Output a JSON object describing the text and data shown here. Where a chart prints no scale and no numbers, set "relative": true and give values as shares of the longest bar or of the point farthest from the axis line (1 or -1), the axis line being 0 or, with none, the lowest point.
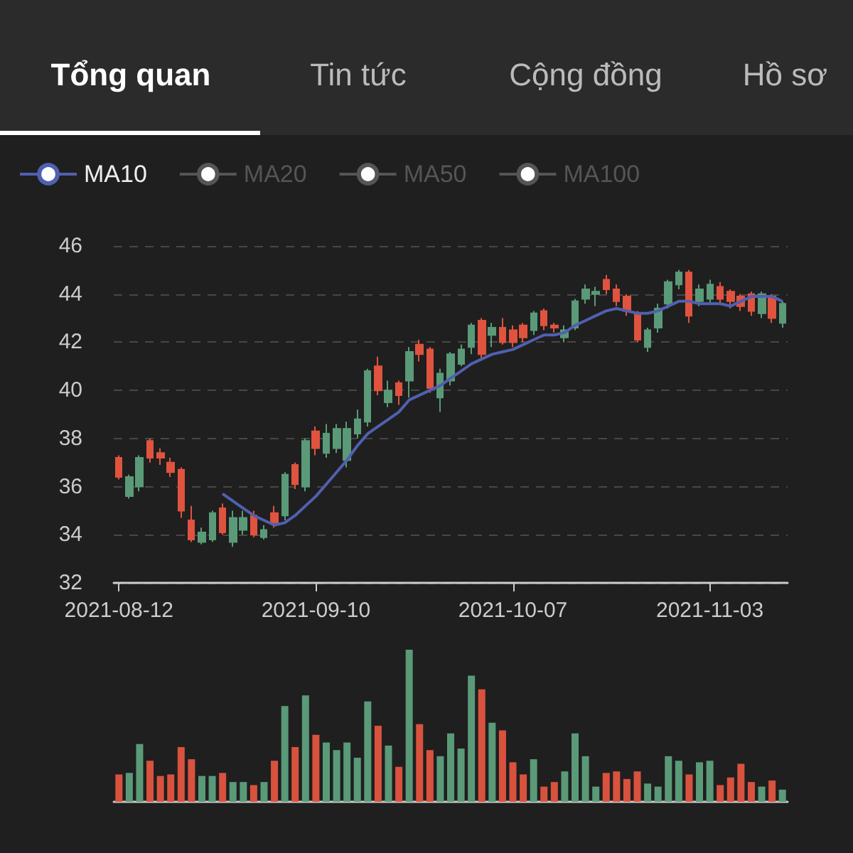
{
  "chart_data": [
    {
      "type": "candlestick",
      "annotations": [
        "Tổng quan",
        "Tin tức",
        "Cộng đồng",
        "Hồ sơ"
      ],
      "categories": [
        "2021-08-12",
        null,
        null,
        null,
        null,
        null,
        null,
        null,
        null,
        null,
        null,
        null,
        null,
        null,
        null,
        null,
        null,
        null,
        null,
        "2021-09-10",
        null,
        null,
        null,
        null,
        null,
        null,
        null,
        null,
        null,
        null,
        null,
        null,
        null,
        null,
        null,
        null,
        null,
        null,
        "2021-10-07",
        null,
        null,
        null,
        null,
        null,
        null,
        null,
        null,
        null,
        null,
        null,
        null,
        null,
        null,
        null,
        null,
        null,
        null,
        "2021-11-03",
        null,
        null,
        null,
        null,
        null,
        null,
        null
      ],
      "ohlc": [
        [
          37.2,
          37.3,
          36.3,
          36.4
        ],
        [
          35.6,
          36.5,
          35.5,
          36.4
        ],
        [
          36.0,
          37.3,
          35.8,
          37.2
        ],
        [
          37.9,
          38.0,
          37.0,
          37.2
        ],
        [
          37.4,
          37.6,
          36.9,
          37.2
        ],
        [
          37.0,
          37.2,
          36.4,
          36.6
        ],
        [
          36.7,
          36.8,
          34.7,
          35.0
        ],
        [
          34.6,
          35.2,
          33.7,
          33.8
        ],
        [
          33.7,
          34.3,
          33.6,
          34.1
        ],
        [
          33.8,
          35.0,
          33.7,
          34.9
        ],
        [
          35.1,
          35.3,
          34.0,
          34.1
        ],
        [
          33.7,
          35.0,
          33.5,
          34.7
        ],
        [
          34.2,
          35.0,
          34.0,
          34.7
        ],
        [
          34.8,
          35.0,
          33.9,
          34.0
        ],
        [
          33.9,
          34.4,
          33.8,
          34.2
        ],
        [
          34.9,
          35.2,
          34.3,
          34.5
        ],
        [
          34.8,
          36.6,
          34.6,
          36.5
        ],
        [
          36.9,
          37.0,
          35.9,
          36.1
        ],
        [
          36.0,
          38.0,
          35.8,
          37.9
        ],
        [
          38.3,
          38.5,
          37.3,
          37.6
        ],
        [
          37.4,
          38.6,
          37.2,
          38.2
        ],
        [
          37.6,
          38.6,
          37.4,
          38.4
        ],
        [
          37.1,
          38.7,
          36.8,
          38.4
        ],
        [
          38.2,
          39.2,
          38.0,
          38.8
        ],
        [
          38.7,
          40.9,
          38.5,
          40.8
        ],
        [
          41.0,
          41.4,
          39.8,
          40.0
        ],
        [
          39.5,
          40.4,
          39.3,
          40.0
        ],
        [
          40.3,
          40.4,
          39.4,
          39.8
        ],
        [
          40.4,
          41.8,
          39.7,
          41.6
        ],
        [
          41.9,
          42.1,
          41.2,
          41.5
        ],
        [
          41.7,
          41.8,
          39.9,
          40.1
        ],
        [
          39.7,
          40.9,
          39.1,
          40.7
        ],
        [
          40.4,
          41.6,
          40.2,
          41.5
        ],
        [
          41.1,
          41.9,
          41.0,
          41.7
        ],
        [
          41.8,
          42.8,
          41.5,
          42.7
        ],
        [
          42.9,
          43.0,
          41.3,
          41.5
        ],
        [
          42.3,
          42.8,
          41.8,
          42.6
        ],
        [
          42.6,
          43.0,
          41.9,
          42.0
        ],
        [
          42.5,
          42.7,
          41.8,
          42.0
        ],
        [
          42.7,
          42.8,
          42.0,
          42.2
        ],
        [
          42.5,
          43.3,
          42.3,
          43.2
        ],
        [
          43.3,
          43.4,
          42.5,
          42.7
        ],
        [
          42.7,
          42.8,
          42.4,
          42.6
        ],
        [
          42.2,
          42.7,
          42.0,
          42.5
        ],
        [
          42.6,
          43.8,
          42.5,
          43.7
        ],
        [
          43.8,
          44.4,
          43.6,
          44.2
        ],
        [
          44.0,
          44.3,
          43.5,
          44.1
        ],
        [
          44.6,
          44.8,
          44.0,
          44.2
        ],
        [
          44.2,
          44.4,
          43.5,
          43.7
        ],
        [
          43.9,
          44.0,
          43.1,
          43.3
        ],
        [
          43.2,
          43.3,
          42.0,
          42.1
        ],
        [
          41.8,
          42.6,
          41.6,
          42.5
        ],
        [
          42.6,
          43.6,
          42.4,
          43.4
        ],
        [
          43.6,
          44.6,
          43.4,
          44.5
        ],
        [
          44.4,
          45.0,
          44.2,
          44.9
        ],
        [
          44.9,
          45.0,
          42.8,
          43.1
        ],
        [
          43.7,
          44.4,
          43.5,
          44.2
        ],
        [
          43.8,
          44.6,
          43.6,
          44.4
        ],
        [
          44.3,
          44.5,
          43.6,
          43.8
        ],
        [
          44.1,
          44.2,
          43.4,
          43.7
        ],
        [
          43.9,
          44.0,
          43.3,
          43.5
        ],
        [
          44.0,
          44.1,
          43.1,
          43.3
        ],
        [
          43.2,
          44.1,
          43.0,
          44.0
        ],
        [
          43.9,
          44.0,
          42.8,
          43.0
        ],
        [
          42.8,
          43.7,
          42.6,
          43.6
        ]
      ],
      "series": [
        {
          "name": "MA10",
          "type": "line",
          "color": "#5060b0",
          "values": [
            null,
            null,
            null,
            null,
            null,
            null,
            null,
            null,
            null,
            null,
            35.7,
            35.4,
            35.1,
            34.8,
            34.6,
            34.4,
            34.5,
            34.8,
            35.2,
            35.6,
            36.1,
            36.6,
            37.1,
            37.7,
            38.2,
            38.5,
            38.8,
            39.1,
            39.6,
            39.8,
            40.0,
            40.2,
            40.5,
            40.8,
            41.1,
            41.3,
            41.5,
            41.6,
            41.7,
            41.9,
            42.1,
            42.3,
            42.3,
            42.4,
            42.7,
            42.9,
            43.1,
            43.3,
            43.4,
            43.3,
            43.2,
            43.2,
            43.3,
            43.5,
            43.7,
            43.7,
            43.6,
            43.6,
            43.6,
            43.5,
            43.7,
            43.9,
            43.9,
            43.9,
            43.7
          ]
        },
        {
          "name": "MA20",
          "type": "line",
          "color": "#555555",
          "values": [
            null,
            null,
            null,
            null,
            null,
            null,
            null,
            null,
            null,
            null,
            null,
            null,
            null,
            null,
            null,
            null,
            null,
            null,
            null,
            null,
            null,
            null,
            null,
            null,
            null,
            null,
            null,
            null,
            null,
            null,
            null,
            null,
            null,
            null,
            null,
            null,
            null,
            null,
            null,
            null,
            null,
            null,
            null,
            null,
            null,
            null,
            null,
            null,
            null,
            null,
            null,
            null,
            null,
            null,
            null,
            null,
            null,
            null,
            null,
            null,
            null,
            null,
            null,
            null,
            null
          ]
        },
        {
          "name": "MA50",
          "type": "line",
          "color": "#555555",
          "values": [
            null,
            null,
            null,
            null,
            null,
            null,
            null,
            null,
            null,
            null,
            null,
            null,
            null,
            null,
            null,
            null,
            null,
            null,
            null,
            null,
            null,
            null,
            null,
            null,
            null,
            null,
            null,
            null,
            null,
            null,
            null,
            null,
            null,
            null,
            null,
            null,
            null,
            null,
            null,
            null,
            null,
            null,
            null,
            null,
            null,
            null,
            null,
            null,
            null,
            null,
            null,
            null,
            null,
            null,
            null,
            null,
            null,
            null,
            null,
            null,
            null,
            null,
            null,
            null,
            null
          ]
        },
        {
          "name": "MA100",
          "type": "line",
          "color": "#555555",
          "values": [
            null,
            null,
            null,
            null,
            null,
            null,
            null,
            null,
            null,
            null,
            null,
            null,
            null,
            null,
            null,
            null,
            null,
            null,
            null,
            null,
            null,
            null,
            null,
            null,
            null,
            null,
            null,
            null,
            null,
            null,
            null,
            null,
            null,
            null,
            null,
            null,
            null,
            null,
            null,
            null,
            null,
            null,
            null,
            null,
            null,
            null,
            null,
            null,
            null,
            null,
            null,
            null,
            null,
            null,
            null,
            null,
            null,
            null,
            null,
            null,
            null,
            null,
            null,
            null,
            null
          ]
        }
      ],
      "ylim": [
        32,
        46
      ],
      "yticks": [
        32,
        34,
        36,
        38,
        40,
        42,
        44,
        46
      ],
      "grid": "y",
      "legend": "top left"
    },
    {
      "type": "bar",
      "relative": true,
      "tick_labels": false,
      "categories": [
        null,
        null,
        null,
        null,
        null,
        null,
        null,
        null,
        null,
        null,
        null,
        null,
        null,
        null,
        null,
        null,
        null,
        null,
        null,
        null,
        null,
        null,
        null,
        null,
        null,
        null,
        null,
        null,
        null,
        null,
        null,
        null,
        null,
        null,
        null,
        null,
        null,
        null,
        null,
        null,
        null,
        null,
        null,
        null,
        null,
        null,
        null,
        null,
        null,
        null,
        null,
        null,
        null,
        null,
        null,
        null,
        null,
        null,
        null,
        null,
        null,
        null,
        null,
        null,
        null
      ],
      "values": [
        0.18,
        0.19,
        0.38,
        0.27,
        0.17,
        0.18,
        0.36,
        0.28,
        0.17,
        0.17,
        0.19,
        0.13,
        0.13,
        0.11,
        0.13,
        0.27,
        0.63,
        0.36,
        0.7,
        0.44,
        0.39,
        0.34,
        0.39,
        0.29,
        0.66,
        0.5,
        0.37,
        0.23,
        1,
        0.51,
        0.34,
        0.3,
        0.45,
        0.35,
        0.83,
        0.74,
        0.52,
        0.47,
        0.26,
        0.18,
        0.28,
        0.1,
        0.13,
        0.2,
        0.45,
        0.3,
        0.1,
        0.19,
        0.2,
        0.15,
        0.2,
        0.12,
        0.1,
        0.3,
        0.27,
        0.18,
        0.26,
        0.27,
        0.11,
        0.16,
        0.25,
        0.13,
        0.1,
        0.14,
        0.08
      ],
      "colors": [
        "#d9523e",
        "#5a9a78",
        "#5a9a78",
        "#d9523e",
        "#d9523e",
        "#d9523e",
        "#d9523e",
        "#d9523e",
        "#5a9a78",
        "#5a9a78",
        "#d9523e",
        "#5a9a78",
        "#5a9a78",
        "#d9523e",
        "#5a9a78",
        "#d9523e",
        "#5a9a78",
        "#d9523e",
        "#5a9a78",
        "#d9523e",
        "#5a9a78",
        "#5a9a78",
        "#5a9a78",
        "#5a9a78",
        "#5a9a78",
        "#d9523e",
        "#5a9a78",
        "#d9523e",
        "#5a9a78",
        "#d9523e",
        "#d9523e",
        "#5a9a78",
        "#5a9a78",
        "#5a9a78",
        "#5a9a78",
        "#d9523e",
        "#5a9a78",
        "#d9523e",
        "#d9523e",
        "#d9523e",
        "#5a9a78",
        "#d9523e",
        "#d9523e",
        "#5a9a78",
        "#5a9a78",
        "#5a9a78",
        "#5a9a78",
        "#d9523e",
        "#d9523e",
        "#d9523e",
        "#d9523e",
        "#5a9a78",
        "#5a9a78",
        "#5a9a78",
        "#5a9a78",
        "#d9523e",
        "#5a9a78",
        "#5a9a78",
        "#d9523e",
        "#d9523e",
        "#d9523e",
        "#d9523e",
        "#5a9a78",
        "#d9523e",
        "#5a9a78"
      ]
    }
  ]
}
